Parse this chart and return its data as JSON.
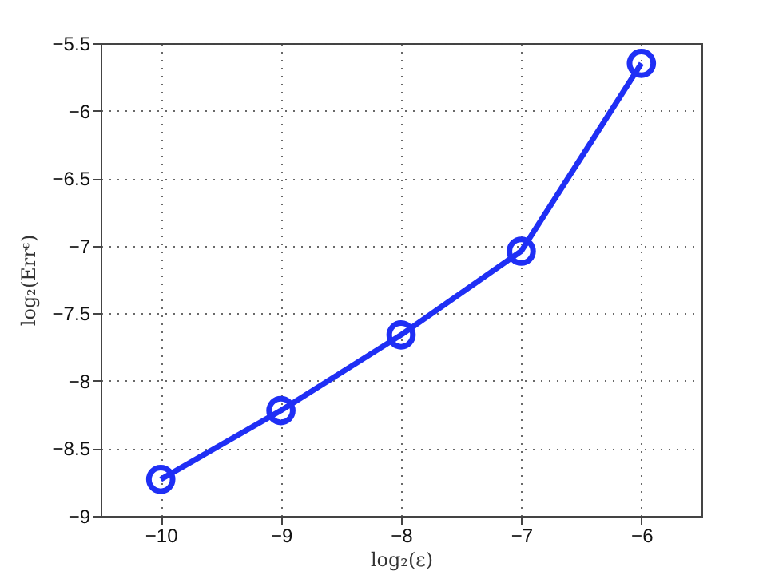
{
  "chart_data": {
    "type": "line",
    "xlabel": "log₂(ε)",
    "ylabel": "log₂(Errᵋ)",
    "x": [
      -10,
      -9,
      -8,
      -7,
      -6
    ],
    "series": [
      {
        "color": "#1f2ff5",
        "values": [
          -8.73,
          -8.22,
          -7.66,
          -7.04,
          -5.65
        ]
      }
    ],
    "xlim": [
      -10.5,
      -5.5
    ],
    "xticks": [
      -10,
      -9,
      -8,
      -7,
      -6
    ],
    "ylim": [
      -9,
      -5.5
    ],
    "yticks": [
      -9,
      -8.5,
      -8,
      -7.5,
      -7,
      -6.5,
      -6,
      -5.5
    ],
    "grid": true,
    "marker": "circle",
    "line_style": "solid",
    "legend": false
  }
}
